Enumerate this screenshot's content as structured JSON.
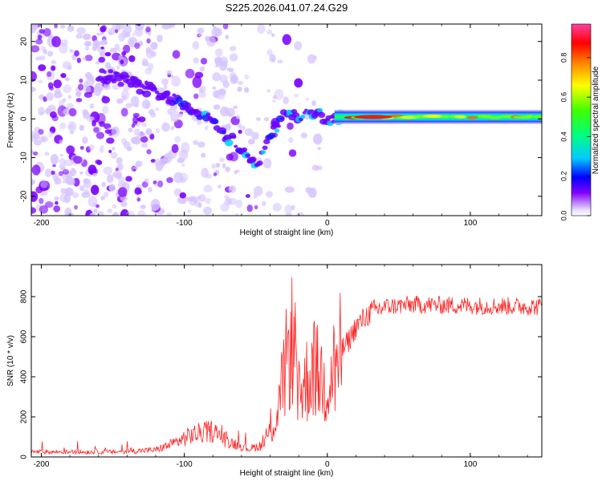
{
  "figure_title": "S225.2026.041.07.24.G29",
  "colorbar": {
    "label": "Normalized spectral amplitude",
    "ticks": [
      "0.0",
      "0.2",
      "0.4",
      "0.6",
      "0.8"
    ],
    "range": [
      0,
      0.97
    ]
  },
  "colors": {
    "snr_line": "#ff2222",
    "spectrogram_light": "#d9c8ff",
    "spectrogram_mid": "#7a00ff",
    "background": "#ffffff"
  },
  "chart_data": [
    {
      "type": "heatmap",
      "title": "",
      "xlabel": "Height of straight line (km)",
      "ylabel": "Frequency (Hz)",
      "xlim": [
        -207,
        150
      ],
      "ylim": [
        -25,
        24.5
      ],
      "xticks": [
        -200,
        -100,
        0,
        100
      ],
      "yticks": [
        -20,
        -10,
        0,
        10,
        20
      ],
      "ridge_frequency_hz": [
        {
          "x": -150,
          "y": 11
        },
        {
          "x": -120,
          "y": 7
        },
        {
          "x": -100,
          "y": 4
        },
        {
          "x": -80,
          "y": -1
        },
        {
          "x": -65,
          "y": -6
        },
        {
          "x": -50,
          "y": -12
        },
        {
          "x": -40,
          "y": -5
        },
        {
          "x": -30,
          "y": 2
        },
        {
          "x": -20,
          "y": 0
        },
        {
          "x": -10,
          "y": 2
        },
        {
          "x": 0,
          "y": 0
        },
        {
          "x": 10,
          "y": 0.5
        },
        {
          "x": 30,
          "y": 0.5
        },
        {
          "x": 150,
          "y": 0.5
        }
      ]
    },
    {
      "type": "line",
      "title": "",
      "xlabel": "Height of straight line (km)",
      "ylabel": "SNR (10 * v/v)",
      "xlim": [
        -207,
        150
      ],
      "ylim": [
        0,
        960
      ],
      "xticks": [
        -200,
        -100,
        0,
        100
      ],
      "yticks": [
        0,
        200,
        400,
        600,
        800
      ],
      "envelope": {
        "x": [
          -207,
          -150,
          -120,
          -110,
          -95,
          -80,
          -70,
          -55,
          -45,
          -35,
          -30,
          -25,
          -20,
          -10,
          0,
          5,
          10,
          15,
          20,
          30,
          40,
          60,
          100,
          150
        ],
        "y": [
          25,
          25,
          35,
          60,
          110,
          130,
          80,
          40,
          60,
          200,
          420,
          600,
          300,
          450,
          350,
          450,
          530,
          580,
          650,
          720,
          750,
          760,
          755,
          750
        ]
      }
    }
  ]
}
